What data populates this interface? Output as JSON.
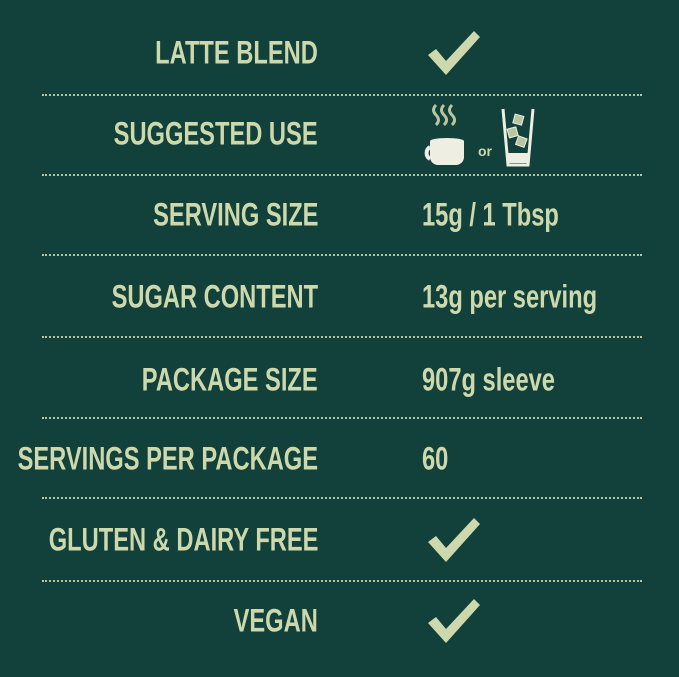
{
  "colors": {
    "background": "#12403a",
    "text": "#cdd9ad"
  },
  "rows": [
    {
      "label": "LATTE BLEND",
      "value_icon": "checkmark-icon"
    },
    {
      "label": "SUGGESTED USE",
      "value_icons": [
        "hot-cup-icon",
        "iced-glass-icon"
      ],
      "connector": "or"
    },
    {
      "label": "SERVING SIZE",
      "value": "15g / 1 Tbsp"
    },
    {
      "label": "SUGAR CONTENT",
      "value": "13g per serving"
    },
    {
      "label": "PACKAGE SIZE",
      "value": "907g sleeve"
    },
    {
      "label": "SERVINGS PER PACKAGE",
      "value": "60"
    },
    {
      "label": "GLUTEN & DAIRY FREE",
      "value_icon": "checkmark-icon"
    },
    {
      "label": "VEGAN",
      "value_icon": "checkmark-icon"
    }
  ]
}
